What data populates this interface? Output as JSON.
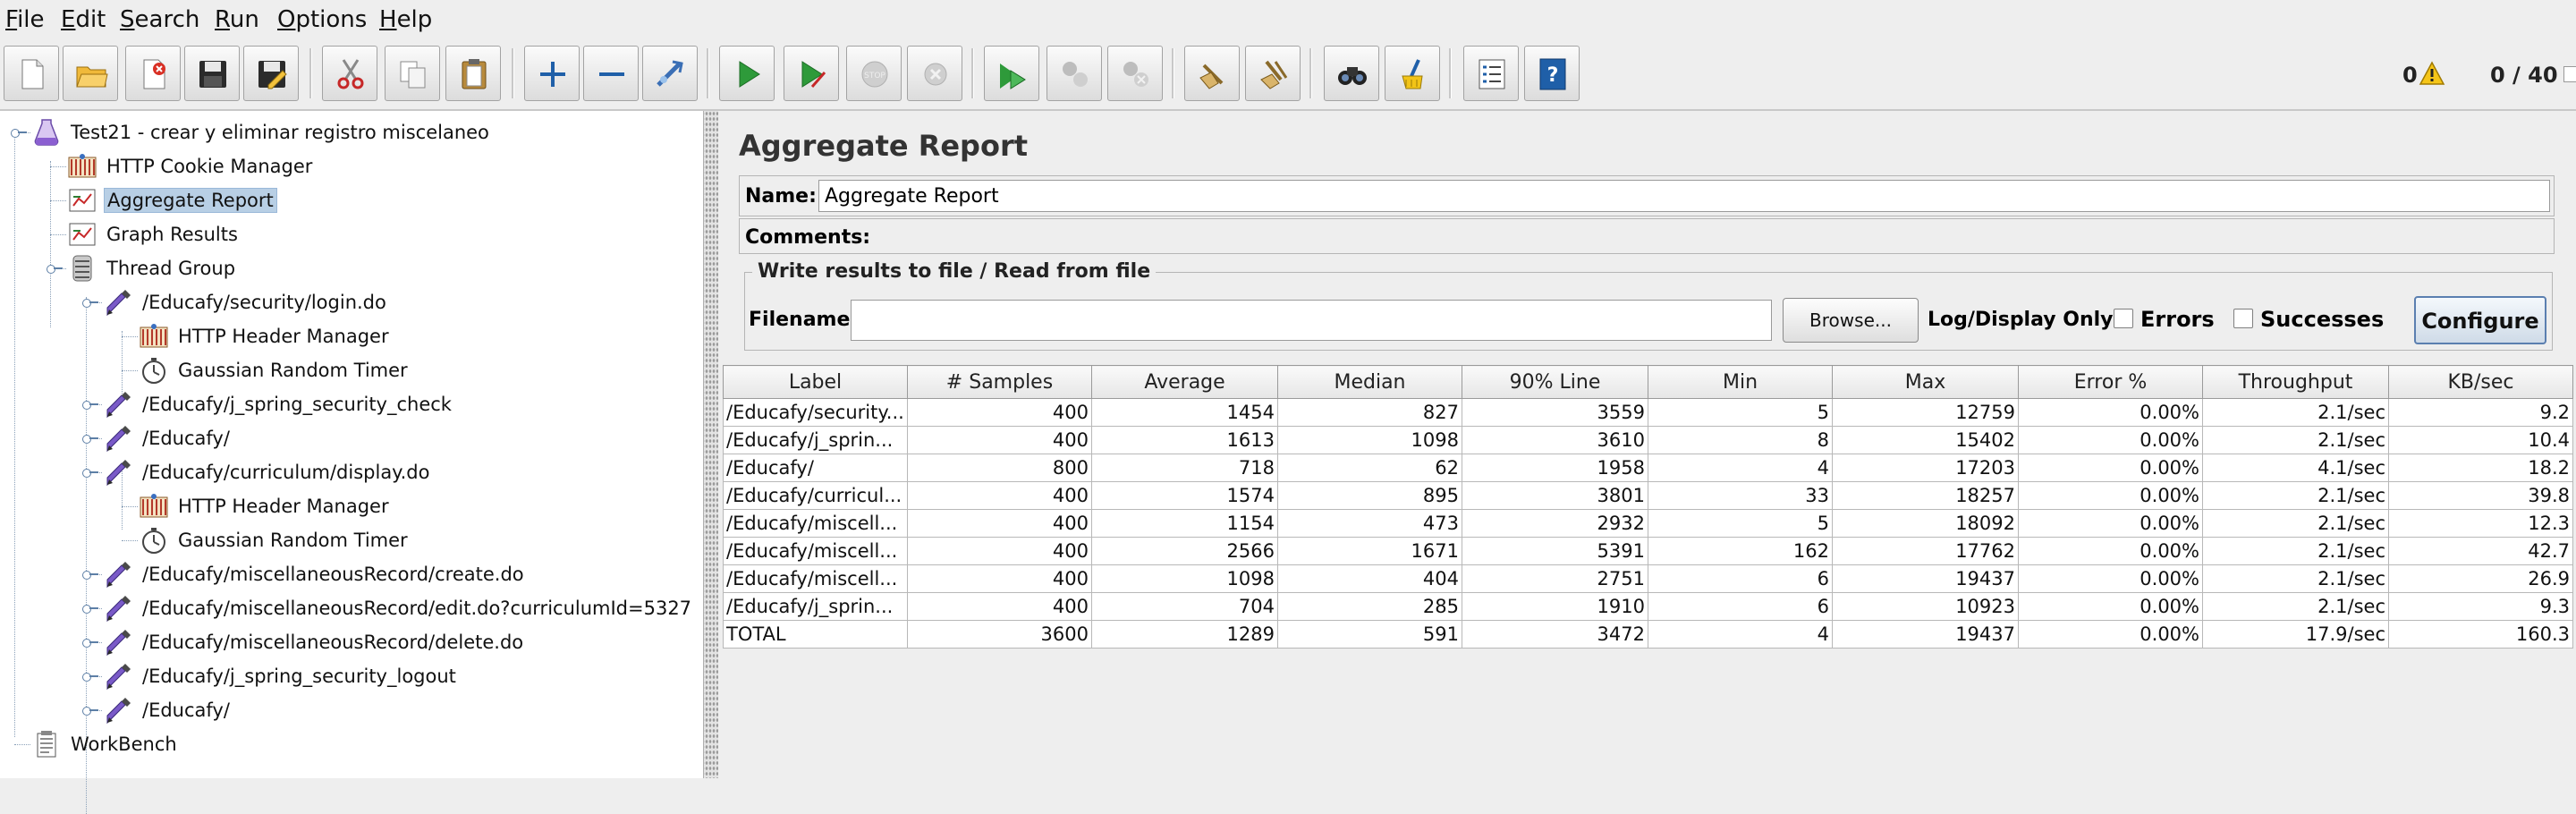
{
  "menu": [
    {
      "mnemonic": "F",
      "rest": "ile"
    },
    {
      "mnemonic": "E",
      "rest": "dit"
    },
    {
      "mnemonic": "S",
      "rest": "earch"
    },
    {
      "mnemonic": "R",
      "rest": "un"
    },
    {
      "mnemonic": "O",
      "rest": "ptions"
    },
    {
      "mnemonic": "H",
      "rest": "elp"
    }
  ],
  "toolbar": {
    "buttons": [
      {
        "icon": "new-file-icon"
      },
      {
        "icon": "open-folder-icon"
      },
      {
        "icon": "close-file-icon"
      },
      {
        "icon": "save-icon"
      },
      {
        "icon": "save-as-icon"
      },
      {
        "icon": "cut-icon"
      },
      {
        "icon": "copy-icon"
      },
      {
        "icon": "paste-icon"
      },
      {
        "icon": "expand-icon"
      },
      {
        "icon": "collapse-icon"
      },
      {
        "icon": "toggle-icon"
      },
      {
        "icon": "start-icon"
      },
      {
        "icon": "start-no-pauses-icon"
      },
      {
        "icon": "stop-icon"
      },
      {
        "icon": "shutdown-icon"
      },
      {
        "icon": "remote-start-all-icon"
      },
      {
        "icon": "remote-stop-all-icon"
      },
      {
        "icon": "remote-shutdown-all-icon"
      },
      {
        "icon": "clear-icon"
      },
      {
        "icon": "clear-all-icon"
      },
      {
        "icon": "search-icon"
      },
      {
        "icon": "reset-search-icon"
      },
      {
        "icon": "function-helper-icon"
      },
      {
        "icon": "help-icon"
      }
    ],
    "warning_count": "0",
    "thread_count": "0 / 40"
  },
  "tree": {
    "nodes": [
      {
        "label": "Test21 - crear y eliminar registro miscelaneo",
        "icon": "test-plan-icon"
      },
      {
        "label": "HTTP Cookie Manager",
        "icon": "cookie-manager-icon"
      },
      {
        "label": "Aggregate Report",
        "icon": "listener-icon",
        "selected": true
      },
      {
        "label": "Graph Results",
        "icon": "listener-icon"
      },
      {
        "label": "Thread Group",
        "icon": "thread-group-icon"
      },
      {
        "label": "/Educafy/security/login.do",
        "icon": "http-sampler-icon"
      },
      {
        "label": "HTTP Header Manager",
        "icon": "header-manager-icon"
      },
      {
        "label": "Gaussian Random Timer",
        "icon": "timer-icon"
      },
      {
        "label": "/Educafy/j_spring_security_check",
        "icon": "http-sampler-icon"
      },
      {
        "label": "/Educafy/",
        "icon": "http-sampler-icon"
      },
      {
        "label": "/Educafy/curriculum/display.do",
        "icon": "http-sampler-icon"
      },
      {
        "label": "HTTP Header Manager",
        "icon": "header-manager-icon"
      },
      {
        "label": "Gaussian Random Timer",
        "icon": "timer-icon"
      },
      {
        "label": "/Educafy/miscellaneousRecord/create.do",
        "icon": "http-sampler-icon"
      },
      {
        "label": "/Educafy/miscellaneousRecord/edit.do?curriculumId=5327",
        "icon": "http-sampler-icon"
      },
      {
        "label": "/Educafy/miscellaneousRecord/delete.do",
        "icon": "http-sampler-icon"
      },
      {
        "label": "/Educafy/j_spring_security_logout",
        "icon": "http-sampler-icon"
      },
      {
        "label": "/Educafy/",
        "icon": "http-sampler-icon"
      },
      {
        "label": "WorkBench",
        "icon": "workbench-icon"
      }
    ]
  },
  "panel": {
    "title": "Aggregate Report",
    "name_label": "Name:",
    "name_value": "Aggregate Report",
    "comments_label": "Comments:",
    "file_group_title": "Write results to file / Read from file",
    "filename_label": "Filename",
    "filename_value": "",
    "browse_label": "Browse...",
    "log_display_label": "Log/Display Only:",
    "errors_label": "Errors",
    "successes_label": "Successes",
    "configure_label": "Configure"
  },
  "table": {
    "headers": [
      "Label",
      "# Samples",
      "Average",
      "Median",
      "90% Line",
      "Min",
      "Max",
      "Error %",
      "Throughput",
      "KB/sec"
    ],
    "rows": [
      [
        "/Educafy/security...",
        "400",
        "1454",
        "827",
        "3559",
        "5",
        "12759",
        "0.00%",
        "2.1/sec",
        "9.2"
      ],
      [
        "/Educafy/j_sprin...",
        "400",
        "1613",
        "1098",
        "3610",
        "8",
        "15402",
        "0.00%",
        "2.1/sec",
        "10.4"
      ],
      [
        "/Educafy/",
        "800",
        "718",
        "62",
        "1958",
        "4",
        "17203",
        "0.00%",
        "4.1/sec",
        "18.2"
      ],
      [
        "/Educafy/curricul...",
        "400",
        "1574",
        "895",
        "3801",
        "33",
        "18257",
        "0.00%",
        "2.1/sec",
        "39.8"
      ],
      [
        "/Educafy/miscell...",
        "400",
        "1154",
        "473",
        "2932",
        "5",
        "18092",
        "0.00%",
        "2.1/sec",
        "12.3"
      ],
      [
        "/Educafy/miscell...",
        "400",
        "2566",
        "1671",
        "5391",
        "162",
        "17762",
        "0.00%",
        "2.1/sec",
        "42.7"
      ],
      [
        "/Educafy/miscell...",
        "400",
        "1098",
        "404",
        "2751",
        "6",
        "19437",
        "0.00%",
        "2.1/sec",
        "26.9"
      ],
      [
        "/Educafy/j_sprin...",
        "400",
        "704",
        "285",
        "1910",
        "6",
        "10923",
        "0.00%",
        "2.1/sec",
        "9.3"
      ],
      [
        "TOTAL",
        "3600",
        "1289",
        "591",
        "3472",
        "4",
        "19437",
        "0.00%",
        "17.9/sec",
        "160.3"
      ]
    ]
  }
}
